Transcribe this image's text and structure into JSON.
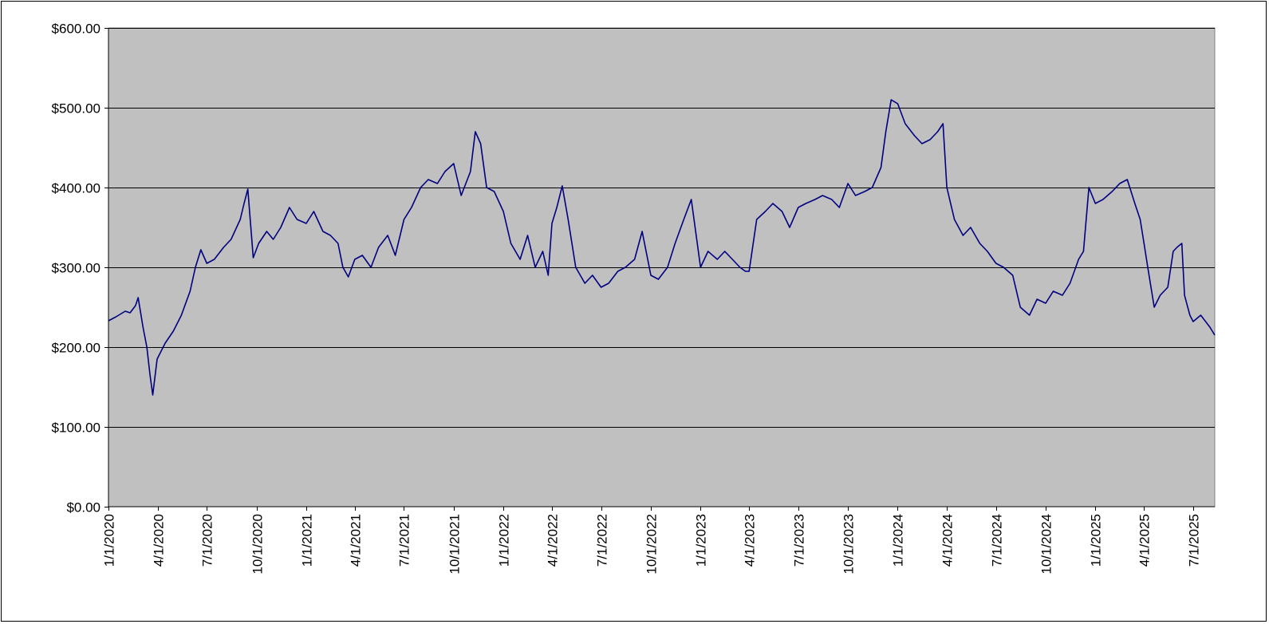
{
  "chart_data": {
    "type": "line",
    "title": "",
    "xlabel": "",
    "ylabel": "",
    "ylim": [
      0,
      600
    ],
    "xlim": [
      "2020-01-01",
      "2025-08-10"
    ],
    "y_ticks": [
      0,
      100,
      200,
      300,
      400,
      500,
      600
    ],
    "y_tick_labels": [
      "$0.00",
      "$100.00",
      "$200.00",
      "$300.00",
      "$400.00",
      "$500.00",
      "$600.00"
    ],
    "x_ticks": [
      "2020-01-01",
      "2020-04-01",
      "2020-07-01",
      "2020-10-01",
      "2021-01-01",
      "2021-04-01",
      "2021-07-01",
      "2021-10-01",
      "2022-01-01",
      "2022-04-01",
      "2022-07-01",
      "2022-10-01",
      "2023-01-01",
      "2023-04-01",
      "2023-07-01",
      "2023-10-01",
      "2024-01-01",
      "2024-04-01",
      "2024-07-01",
      "2024-10-01",
      "2025-01-01",
      "2025-04-01",
      "2025-07-01"
    ],
    "x_tick_labels": [
      "1/1/2020",
      "4/1/2020",
      "7/1/2020",
      "10/1/2020",
      "1/1/2021",
      "4/1/2021",
      "7/1/2021",
      "10/1/2021",
      "1/1/2022",
      "4/1/2022",
      "7/1/2022",
      "10/1/2022",
      "1/1/2023",
      "4/1/2023",
      "7/1/2023",
      "10/1/2023",
      "1/1/2024",
      "4/1/2024",
      "7/1/2024",
      "10/1/2024",
      "1/1/2025",
      "4/1/2025",
      "7/1/2025"
    ],
    "grid": {
      "horizontal": true,
      "vertical": false
    },
    "legend": "none",
    "colors": {
      "plot_bg": "#c0c0c0",
      "line": "#000080",
      "grid": "#000000"
    },
    "series": [
      {
        "x": [
          "2020-01-01",
          "2020-01-15",
          "2020-02-01",
          "2020-02-10",
          "2020-02-20",
          "2020-02-25",
          "2020-03-05",
          "2020-03-12",
          "2020-03-18",
          "2020-03-23",
          "2020-03-31",
          "2020-04-15",
          "2020-04-30",
          "2020-05-15",
          "2020-05-31",
          "2020-06-10",
          "2020-06-20",
          "2020-07-01",
          "2020-07-15",
          "2020-08-01",
          "2020-08-15",
          "2020-09-01",
          "2020-09-08",
          "2020-09-15",
          "2020-09-20",
          "2020-09-25",
          "2020-10-05",
          "2020-10-20",
          "2020-11-01",
          "2020-11-15",
          "2020-12-01",
          "2020-12-15",
          "2021-01-01",
          "2021-01-15",
          "2021-02-01",
          "2021-02-15",
          "2021-03-01",
          "2021-03-10",
          "2021-03-20",
          "2021-04-01",
          "2021-04-15",
          "2021-05-01",
          "2021-05-15",
          "2021-06-01",
          "2021-06-15",
          "2021-07-01",
          "2021-07-15",
          "2021-08-01",
          "2021-08-15",
          "2021-09-01",
          "2021-09-15",
          "2021-10-01",
          "2021-10-15",
          "2021-11-01",
          "2021-11-10",
          "2021-11-20",
          "2021-12-01",
          "2021-12-15",
          "2022-01-01",
          "2022-01-15",
          "2022-02-01",
          "2022-02-15",
          "2022-03-01",
          "2022-03-15",
          "2022-03-25",
          "2022-04-01",
          "2022-04-10",
          "2022-04-20",
          "2022-05-01",
          "2022-05-15",
          "2022-06-01",
          "2022-06-15",
          "2022-07-01",
          "2022-07-15",
          "2022-08-01",
          "2022-08-15",
          "2022-09-01",
          "2022-09-15",
          "2022-10-01",
          "2022-10-15",
          "2022-11-01",
          "2022-11-15",
          "2022-12-01",
          "2022-12-15",
          "2023-01-01",
          "2023-01-15",
          "2023-02-01",
          "2023-02-15",
          "2023-03-01",
          "2023-03-15",
          "2023-03-25",
          "2023-04-01",
          "2023-04-15",
          "2023-05-01",
          "2023-05-15",
          "2023-06-01",
          "2023-06-15",
          "2023-07-01",
          "2023-07-15",
          "2023-08-01",
          "2023-08-15",
          "2023-09-01",
          "2023-09-15",
          "2023-10-01",
          "2023-10-15",
          "2023-11-01",
          "2023-11-15",
          "2023-12-01",
          "2023-12-10",
          "2023-12-20",
          "2024-01-01",
          "2024-01-15",
          "2024-02-01",
          "2024-02-15",
          "2024-03-01",
          "2024-03-15",
          "2024-03-25",
          "2024-04-01",
          "2024-04-15",
          "2024-05-01",
          "2024-05-15",
          "2024-06-01",
          "2024-06-15",
          "2024-07-01",
          "2024-07-15",
          "2024-08-01",
          "2024-08-15",
          "2024-09-01",
          "2024-09-15",
          "2024-10-01",
          "2024-10-15",
          "2024-11-01",
          "2024-11-15",
          "2024-12-01",
          "2024-12-10",
          "2024-12-20",
          "2025-01-01",
          "2025-01-15",
          "2025-02-01",
          "2025-02-15",
          "2025-03-01",
          "2025-03-15",
          "2025-03-25",
          "2025-04-01",
          "2025-04-08",
          "2025-04-20",
          "2025-05-01",
          "2025-05-15",
          "2025-05-25",
          "2025-06-01",
          "2025-06-10",
          "2025-06-15",
          "2025-06-25",
          "2025-07-01",
          "2025-07-15",
          "2025-08-01",
          "2025-08-10"
        ],
        "y": [
          233,
          238,
          245,
          243,
          252,
          262,
          225,
          200,
          165,
          140,
          185,
          205,
          220,
          240,
          270,
          300,
          322,
          305,
          310,
          325,
          335,
          360,
          380,
          398,
          355,
          312,
          330,
          345,
          335,
          350,
          375,
          360,
          355,
          370,
          345,
          340,
          330,
          300,
          288,
          310,
          315,
          300,
          325,
          340,
          315,
          360,
          375,
          400,
          410,
          405,
          420,
          430,
          390,
          420,
          470,
          455,
          400,
          395,
          370,
          330,
          310,
          340,
          300,
          320,
          290,
          355,
          375,
          402,
          360,
          300,
          280,
          290,
          275,
          280,
          295,
          300,
          310,
          345,
          290,
          285,
          300,
          330,
          360,
          385,
          300,
          320,
          310,
          320,
          310,
          300,
          295,
          295,
          360,
          370,
          380,
          370,
          350,
          375,
          380,
          385,
          390,
          385,
          375,
          405,
          390,
          395,
          400,
          425,
          470,
          510,
          505,
          480,
          465,
          455,
          460,
          470,
          480,
          400,
          360,
          340,
          350,
          330,
          320,
          305,
          300,
          290,
          250,
          240,
          260,
          255,
          270,
          265,
          280,
          310,
          320,
          400,
          380,
          385,
          395,
          405,
          410,
          380,
          360,
          330,
          300,
          250,
          265,
          275,
          320,
          325,
          330,
          265,
          240,
          232,
          240,
          225,
          215
        ]
      }
    ]
  }
}
